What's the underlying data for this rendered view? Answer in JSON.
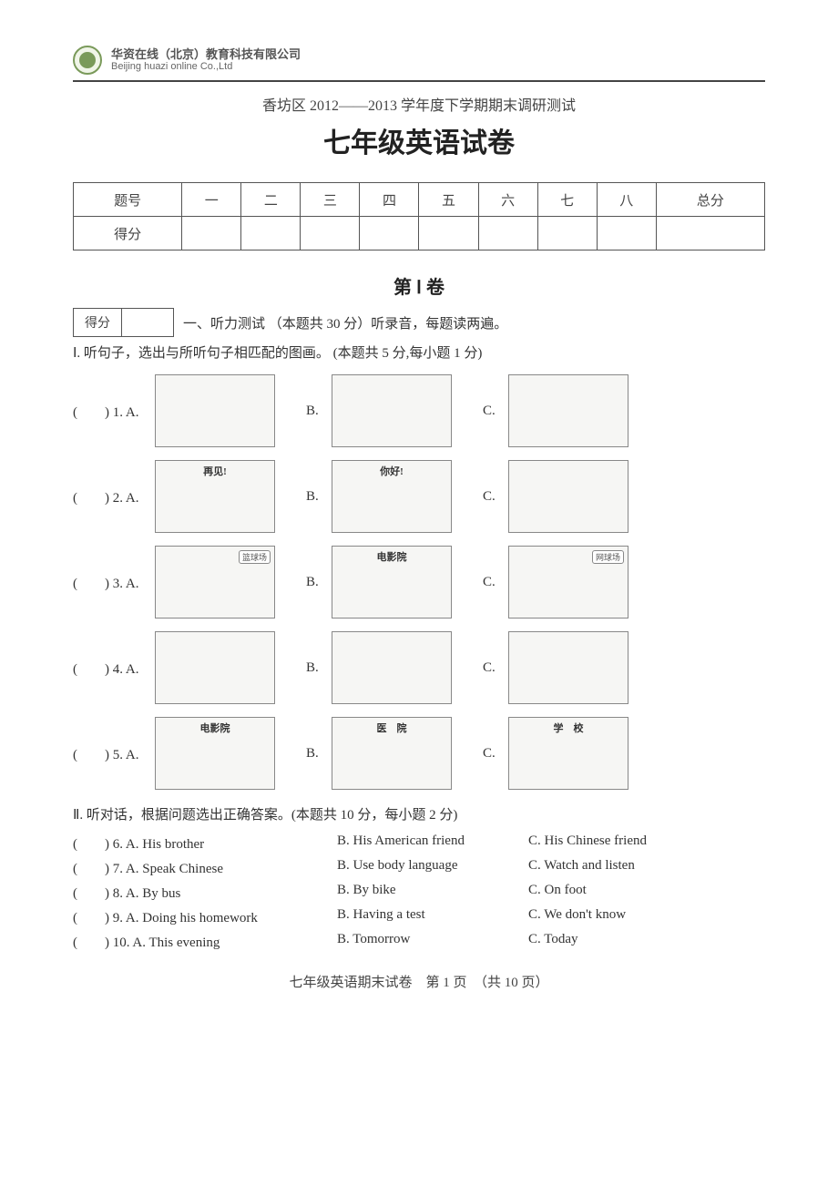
{
  "company": {
    "cn": "华资在线（北京）教育科技有限公司",
    "en": "Beijing huazi online Co.,Ltd"
  },
  "subtitle": "香坊区 2012——2013 学年度下学期期末调研测试",
  "title": "七年级英语试卷",
  "scoreHeaders": [
    "题号",
    "一",
    "二",
    "三",
    "四",
    "五",
    "六",
    "七",
    "八",
    "总分"
  ],
  "scoreRowLabel": "得分",
  "volume": "第 Ⅰ 卷",
  "scoreBoxLabel": "得分",
  "sectionTitle": "一、听力测试 （本题共 30 分）听录音，每题读两遍。",
  "subsection1": "Ⅰ. 听句子，选出与所听句子相匹配的图画。 (本题共 5 分,每小题 1 分)",
  "qRows": [
    {
      "num": "(　　) 1. A.",
      "a": {
        "cap": "",
        "tag": ""
      },
      "b": {
        "cap": "",
        "tag": ""
      },
      "c": {
        "cap": "",
        "tag": ""
      }
    },
    {
      "num": "(　　) 2. A.",
      "a": {
        "cap": "再见!",
        "tag": ""
      },
      "b": {
        "cap": "你好!",
        "tag": ""
      },
      "c": {
        "cap": "",
        "tag": ""
      }
    },
    {
      "num": "(　　) 3. A.",
      "a": {
        "cap": "",
        "tag": "篮球场"
      },
      "b": {
        "cap": "电影院",
        "tag": ""
      },
      "c": {
        "cap": "",
        "tag": "网球场"
      }
    },
    {
      "num": "(　　) 4. A.",
      "a": {
        "cap": "",
        "tag": ""
      },
      "b": {
        "cap": "",
        "tag": ""
      },
      "c": {
        "cap": "",
        "tag": ""
      }
    },
    {
      "num": "(　　) 5. A.",
      "a": {
        "cap": "电影院",
        "tag": ""
      },
      "b": {
        "cap": "医　院",
        "tag": ""
      },
      "c": {
        "cap": "学　校",
        "tag": ""
      }
    }
  ],
  "subsection2": "Ⅱ. 听对话，根据问题选出正确答案。(本题共 10 分，每小题 2 分)",
  "mc": [
    {
      "n": "(　　) 6. A. His brother",
      "b": "B. His American friend",
      "c": "C. His Chinese friend"
    },
    {
      "n": "(　　) 7. A. Speak Chinese",
      "b": "B. Use body language",
      "c": "C. Watch and listen"
    },
    {
      "n": "(　　) 8. A. By bus",
      "b": "B. By bike",
      "c": "C. On foot"
    },
    {
      "n": "(　　) 9. A. Doing his homework",
      "b": "B. Having a test",
      "c": "C. We don't know"
    },
    {
      "n": "(　　) 10. A. This evening",
      "b": "B. Tomorrow",
      "c": "C. Today"
    }
  ],
  "footer": "七年级英语期末试卷　第 1 页　（共 10 页）"
}
